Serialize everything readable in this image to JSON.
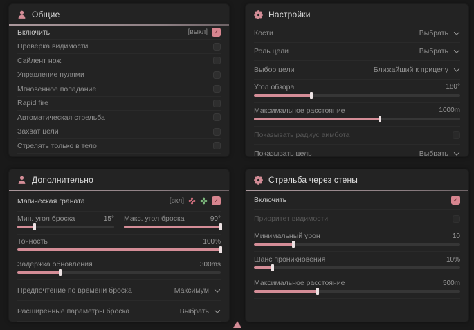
{
  "accent": {
    "pink": "#d48d97",
    "green": "#7cb87c",
    "panel_bg": "#232323",
    "page_bg": "#191919"
  },
  "panels": {
    "general": {
      "title": "Общие",
      "rows": [
        {
          "label": "Включить",
          "hotkey": "[выкл]",
          "checked": true
        },
        {
          "label": "Проверка видимости",
          "checked": false
        },
        {
          "label": "Сайлент нож",
          "checked": false
        },
        {
          "label": "Управление пулями",
          "checked": false
        },
        {
          "label": "Мгновенное попадание",
          "checked": false
        },
        {
          "label": "Rapid fire",
          "checked": false
        },
        {
          "label": "Автоматическая стрельба",
          "checked": false
        },
        {
          "label": "Захват цели",
          "checked": false
        },
        {
          "label": "Стрелять только в тело",
          "checked": false
        }
      ]
    },
    "settings": {
      "title": "Настройки",
      "rows": [
        {
          "label": "Кости",
          "value": "Выбрать"
        },
        {
          "label": "Роль цели",
          "value": "Выбрать"
        },
        {
          "label": "Выбор цели",
          "value": "Ближайший к прицелу"
        },
        {
          "label": "Угол обзора",
          "value": "180°",
          "fill": 28
        },
        {
          "label": "Максимальное расстояние",
          "value": "1000m",
          "fill": 61
        },
        {
          "label": "Показывать радиус аимбота",
          "checked": false,
          "disabled": true
        },
        {
          "label": "Показывать цель",
          "value": "Выбрать"
        }
      ]
    },
    "additional": {
      "title": "Дополнительно",
      "rows": [
        {
          "label": "Магическая граната",
          "hotkey": "[вкл]",
          "checked": true
        },
        {
          "label": "Мин. угол броска",
          "value": "15°",
          "fill": 18
        },
        {
          "label": "Макс. угол броска",
          "value": "90°",
          "fill": 100
        },
        {
          "label": "Точность",
          "value": "100%",
          "fill": 100
        },
        {
          "label": "Задержка обновления",
          "value": "300ms",
          "fill": 21
        },
        {
          "label": "Предпочтение по времени броска",
          "value": "Максимум"
        },
        {
          "label": "Расширенные параметры броска",
          "value": "Выбрать"
        }
      ]
    },
    "walls": {
      "title": "Стрельба через стены",
      "rows": [
        {
          "label": "Включить",
          "checked": true
        },
        {
          "label": "Приоритет видимости",
          "checked": false,
          "disabled": true
        },
        {
          "label": "Минимальный урон",
          "value": "10",
          "fill": 19
        },
        {
          "label": "Шанс проникновения",
          "value": "10%",
          "fill": 9
        },
        {
          "label": "Максимальное расстояние",
          "value": "500m",
          "fill": 31
        }
      ]
    }
  }
}
